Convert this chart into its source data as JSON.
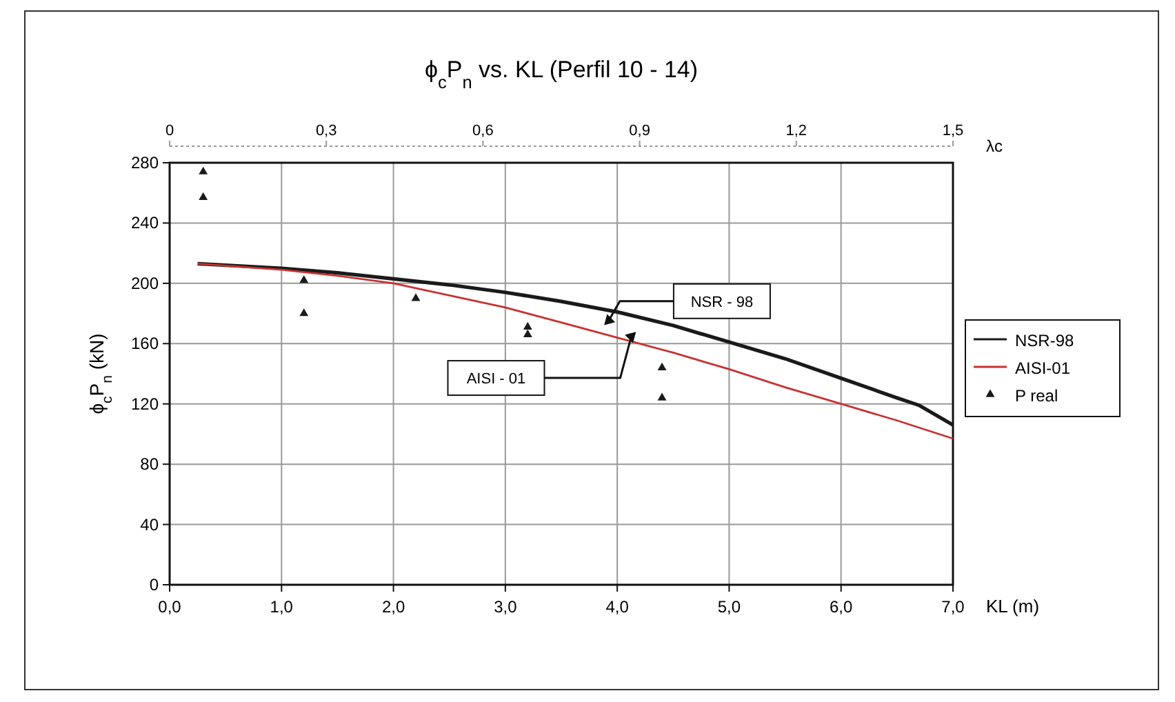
{
  "chart_data": {
    "type": "line",
    "title": "ϕ$_{c}$P$_{n}$ vs. KL  (Perfil 10 - 14)",
    "xlabel": "KL (m)",
    "ylabel": "ϕ$_{c}$P$_{n}$ (kN)",
    "x2label": "λc",
    "xlim": [
      0,
      7
    ],
    "xticks": [
      {
        "value": 0,
        "label": "0,0"
      },
      {
        "value": 1,
        "label": "1,0"
      },
      {
        "value": 2,
        "label": "2,0"
      },
      {
        "value": 3,
        "label": "3,0"
      },
      {
        "value": 4,
        "label": "4,0"
      },
      {
        "value": 5,
        "label": "5,0"
      },
      {
        "value": 6,
        "label": "6,0"
      },
      {
        "value": 7,
        "label": "7,0"
      }
    ],
    "x2lim": [
      0,
      1.5
    ],
    "x2ticks": [
      0,
      {
        "value": 0.3,
        "label": "0,3"
      },
      {
        "value": 0.6,
        "label": "0,6"
      },
      {
        "value": 0.9,
        "label": "0,9"
      },
      {
        "value": 1.2,
        "label": "1,2"
      },
      {
        "value": 1.5,
        "label": "1,5"
      }
    ],
    "ylim": [
      0,
      280
    ],
    "yticks": [
      0,
      40,
      80,
      120,
      160,
      200,
      240,
      280
    ],
    "grid": true,
    "legend": "right",
    "series": [
      {
        "name": "NSR-98",
        "color": "#1a1a1a",
        "x": [
          0.25,
          1,
          1.5,
          2,
          2.5,
          3,
          3.5,
          4,
          4.5,
          5,
          5.5,
          6,
          6.5,
          6.7,
          7
        ],
        "values": [
          213,
          210,
          207,
          203,
          199,
          194,
          188,
          181,
          172,
          161,
          150,
          137,
          124,
          119,
          106
        ]
      },
      {
        "name": "AISI-01",
        "color": "#c83232",
        "x": [
          0.25,
          1,
          1.5,
          2,
          2.5,
          3,
          3.5,
          4,
          4.5,
          5,
          5.5,
          6,
          6.5,
          7
        ],
        "values": [
          213,
          209,
          205,
          200,
          192,
          184,
          174,
          164,
          154,
          143,
          131,
          120,
          109,
          97
        ]
      },
      {
        "name": "P real",
        "type": "scatter",
        "color": "#1a1a1a",
        "marker": "triangle",
        "x": [
          0.3,
          0.3,
          1.2,
          1.2,
          2.2,
          3.2,
          3.2,
          4.4,
          4.4
        ],
        "values": [
          274,
          257,
          202,
          180,
          190,
          171,
          166,
          144,
          124
        ]
      }
    ],
    "annotations": [
      {
        "text": "NSR - 98",
        "x": 3.9,
        "y": 179
      },
      {
        "text": "AISI - 01",
        "x": 4.15,
        "y": 161
      }
    ]
  }
}
